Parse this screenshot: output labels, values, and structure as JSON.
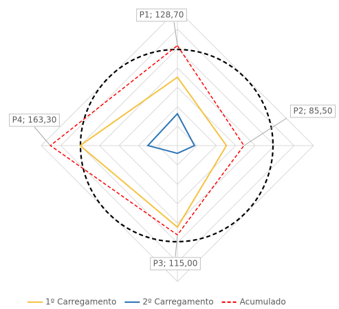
{
  "chart_data": {
    "type": "radar",
    "categories": [
      "P1",
      "P2",
      "P3",
      "P4"
    ],
    "rlim": [
      0,
      175
    ],
    "rticks": [
      0,
      25,
      50,
      75,
      100,
      125,
      150,
      175
    ],
    "grid": true,
    "legend": "bottom",
    "series": [
      {
        "name": "1º Carregamento",
        "color": "#f5c242",
        "dash": false,
        "values": [
          88,
          63,
          105,
          125
        ]
      },
      {
        "name": "2º Carregamento",
        "color": "#2e75b6",
        "dash": false,
        "values": [
          41,
          22,
          10,
          38
        ]
      },
      {
        "name": "Acumulado",
        "color": "#ff0000",
        "dash": true,
        "values": [
          128.7,
          85.5,
          115.0,
          163.3
        ],
        "value_labels": [
          "P1; 128,70",
          "P2; 85,50",
          "P3; 115,00",
          "P4; 163,30"
        ]
      }
    ]
  }
}
